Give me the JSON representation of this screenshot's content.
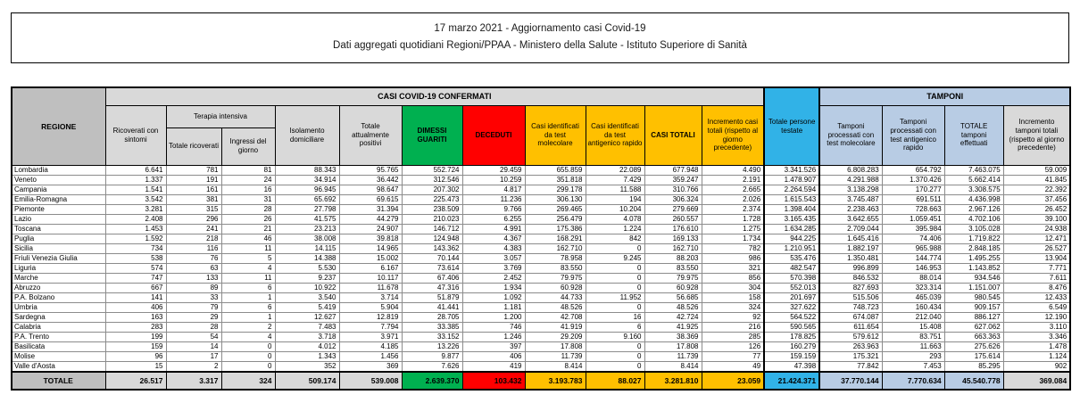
{
  "title": {
    "line1": "17 marzo 2021 - Aggiornamento casi Covid-19",
    "line2": "Dati aggregati quotidiani Regioni/PPAA - Ministero della Salute - Istituto Superiore di Sanità"
  },
  "colors": {
    "green": "#00B050",
    "red": "#FF0000",
    "amber": "#FFC000",
    "cyan": "#31B2E7",
    "light_blue": "#B8CCE4",
    "light_gray": "#D9D9D9",
    "mid_gray": "#BFBFBF"
  },
  "table": {
    "group_headers": {
      "regione": "REGIONE",
      "casi_confermati": "CASI COVID-19 CONFERMATI",
      "tamponi": "TAMPONI",
      "terapia_intensiva": "Terapia intensiva",
      "persone_testate": "Totale persone testate"
    },
    "columns": [
      "Ricoverati con sintomi",
      "Totale ricoverati",
      "Ingressi del giorno",
      "Isolamento domiciliare",
      "Totale attualmente positivi",
      "DIMESSI GUARITI",
      "DECEDUTI",
      "Casi identificati da test molecolare",
      "Casi identificati da test antigenico rapido",
      "CASI TOTALI",
      "Incremento casi totali (rispetto al giorno precedente)",
      "Tamponi processati con test molecolare",
      "Tamponi processati con test antigenico rapido",
      "TOTALE tamponi effettuati",
      "Incremento tamponi totali (rispetto al giorno precedente)"
    ],
    "rows": [
      {
        "region": "Lombardia",
        "values": [
          "6.641",
          "781",
          "81",
          "88.343",
          "95.765",
          "552.724",
          "29.459",
          "655.859",
          "22.089",
          "677.948",
          "4.490",
          "3.341.526",
          "6.808.283",
          "654.792",
          "7.463.075",
          "59.009"
        ]
      },
      {
        "region": "Veneto",
        "values": [
          "1.337",
          "191",
          "24",
          "34.914",
          "36.442",
          "312.546",
          "10.259",
          "351.818",
          "7.429",
          "359.247",
          "2.191",
          "1.478.907",
          "4.291.988",
          "1.370.426",
          "5.662.414",
          "41.845"
        ]
      },
      {
        "region": "Campania",
        "values": [
          "1.541",
          "161",
          "16",
          "96.945",
          "98.647",
          "207.302",
          "4.817",
          "299.178",
          "11.588",
          "310.766",
          "2.665",
          "2.264.594",
          "3.138.298",
          "170.277",
          "3.308.575",
          "22.392"
        ]
      },
      {
        "region": "Emilia-Romagna",
        "values": [
          "3.542",
          "381",
          "31",
          "65.692",
          "69.615",
          "225.473",
          "11.236",
          "306.130",
          "194",
          "306.324",
          "2.026",
          "1.615.543",
          "3.745.487",
          "691.511",
          "4.436.998",
          "37.456"
        ]
      },
      {
        "region": "Piemonte",
        "values": [
          "3.281",
          "315",
          "28",
          "27.798",
          "31.394",
          "238.509",
          "9.766",
          "269.465",
          "10.204",
          "279.669",
          "2.374",
          "1.398.404",
          "2.238.463",
          "728.663",
          "2.967.126",
          "26.452"
        ]
      },
      {
        "region": "Lazio",
        "values": [
          "2.408",
          "296",
          "26",
          "41.575",
          "44.279",
          "210.023",
          "6.255",
          "256.479",
          "4.078",
          "260.557",
          "1.728",
          "3.165.435",
          "3.642.655",
          "1.059.451",
          "4.702.106",
          "39.100"
        ]
      },
      {
        "region": "Toscana",
        "values": [
          "1.453",
          "241",
          "21",
          "23.213",
          "24.907",
          "146.712",
          "4.991",
          "175.386",
          "1.224",
          "176.610",
          "1.275",
          "1.634.285",
          "2.709.044",
          "395.984",
          "3.105.028",
          "24.938"
        ]
      },
      {
        "region": "Puglia",
        "values": [
          "1.592",
          "218",
          "46",
          "38.008",
          "39.818",
          "124.948",
          "4.367",
          "168.291",
          "842",
          "169.133",
          "1.734",
          "944.225",
          "1.645.416",
          "74.406",
          "1.719.822",
          "12.471"
        ]
      },
      {
        "region": "Sicilia",
        "values": [
          "734",
          "116",
          "11",
          "14.115",
          "14.965",
          "143.362",
          "4.383",
          "162.710",
          "0",
          "162.710",
          "782",
          "1.210.951",
          "1.882.197",
          "965.988",
          "2.848.185",
          "26.527"
        ]
      },
      {
        "region": "Friuli Venezia Giulia",
        "values": [
          "538",
          "76",
          "5",
          "14.388",
          "15.002",
          "70.144",
          "3.057",
          "78.958",
          "9.245",
          "88.203",
          "986",
          "535.476",
          "1.350.481",
          "144.774",
          "1.495.255",
          "13.904"
        ]
      },
      {
        "region": "Liguria",
        "values": [
          "574",
          "63",
          "4",
          "5.530",
          "6.167",
          "73.614",
          "3.769",
          "83.550",
          "0",
          "83.550",
          "321",
          "482.547",
          "996.899",
          "146.953",
          "1.143.852",
          "7.771"
        ]
      },
      {
        "region": "Marche",
        "values": [
          "747",
          "133",
          "11",
          "9.237",
          "10.117",
          "67.406",
          "2.452",
          "79.975",
          "0",
          "79.975",
          "856",
          "570.398",
          "846.532",
          "88.014",
          "934.546",
          "7.611"
        ]
      },
      {
        "region": "Abruzzo",
        "values": [
          "667",
          "89",
          "6",
          "10.922",
          "11.678",
          "47.316",
          "1.934",
          "60.928",
          "0",
          "60.928",
          "304",
          "552.013",
          "827.693",
          "323.314",
          "1.151.007",
          "8.476"
        ]
      },
      {
        "region": "P.A. Bolzano",
        "values": [
          "141",
          "33",
          "1",
          "3.540",
          "3.714",
          "51.879",
          "1.092",
          "44.733",
          "11.952",
          "56.685",
          "158",
          "201.697",
          "515.506",
          "465.039",
          "980.545",
          "12.433"
        ]
      },
      {
        "region": "Umbria",
        "values": [
          "406",
          "79",
          "6",
          "5.419",
          "5.904",
          "41.441",
          "1.181",
          "48.526",
          "0",
          "48.526",
          "324",
          "327.622",
          "748.723",
          "160.434",
          "909.157",
          "6.549"
        ]
      },
      {
        "region": "Sardegna",
        "values": [
          "163",
          "29",
          "1",
          "12.627",
          "12.819",
          "28.705",
          "1.200",
          "42.708",
          "16",
          "42.724",
          "92",
          "564.522",
          "674.087",
          "212.040",
          "886.127",
          "12.190"
        ]
      },
      {
        "region": "Calabria",
        "values": [
          "283",
          "28",
          "2",
          "7.483",
          "7.794",
          "33.385",
          "746",
          "41.919",
          "6",
          "41.925",
          "216",
          "590.565",
          "611.654",
          "15.408",
          "627.062",
          "3.110"
        ]
      },
      {
        "region": "P.A. Trento",
        "values": [
          "199",
          "54",
          "4",
          "3.718",
          "3.971",
          "33.152",
          "1.246",
          "29.209",
          "9.160",
          "38.369",
          "285",
          "178.825",
          "579.612",
          "83.751",
          "663.363",
          "3.346"
        ]
      },
      {
        "region": "Basilicata",
        "values": [
          "159",
          "14",
          "0",
          "4.012",
          "4.185",
          "13.226",
          "397",
          "17.808",
          "0",
          "17.808",
          "126",
          "160.279",
          "263.963",
          "11.663",
          "275.626",
          "1.478"
        ]
      },
      {
        "region": "Molise",
        "values": [
          "96",
          "17",
          "0",
          "1.343",
          "1.456",
          "9.877",
          "406",
          "11.739",
          "0",
          "11.739",
          "77",
          "159.159",
          "175.321",
          "293",
          "175.614",
          "1.124"
        ]
      },
      {
        "region": "Valle d'Aosta",
        "values": [
          "15",
          "2",
          "0",
          "352",
          "369",
          "7.626",
          "419",
          "8.414",
          "0",
          "8.414",
          "49",
          "47.398",
          "77.842",
          "7.453",
          "85.295",
          "902"
        ]
      }
    ],
    "total_row": {
      "region": "TOTALE",
      "values": [
        "26.517",
        "3.317",
        "324",
        "509.174",
        "539.008",
        "2.639.370",
        "103.432",
        "3.193.783",
        "88.027",
        "3.281.810",
        "23.059",
        "21.424.371",
        "37.770.144",
        "7.770.634",
        "45.540.778",
        "369.084"
      ]
    }
  }
}
